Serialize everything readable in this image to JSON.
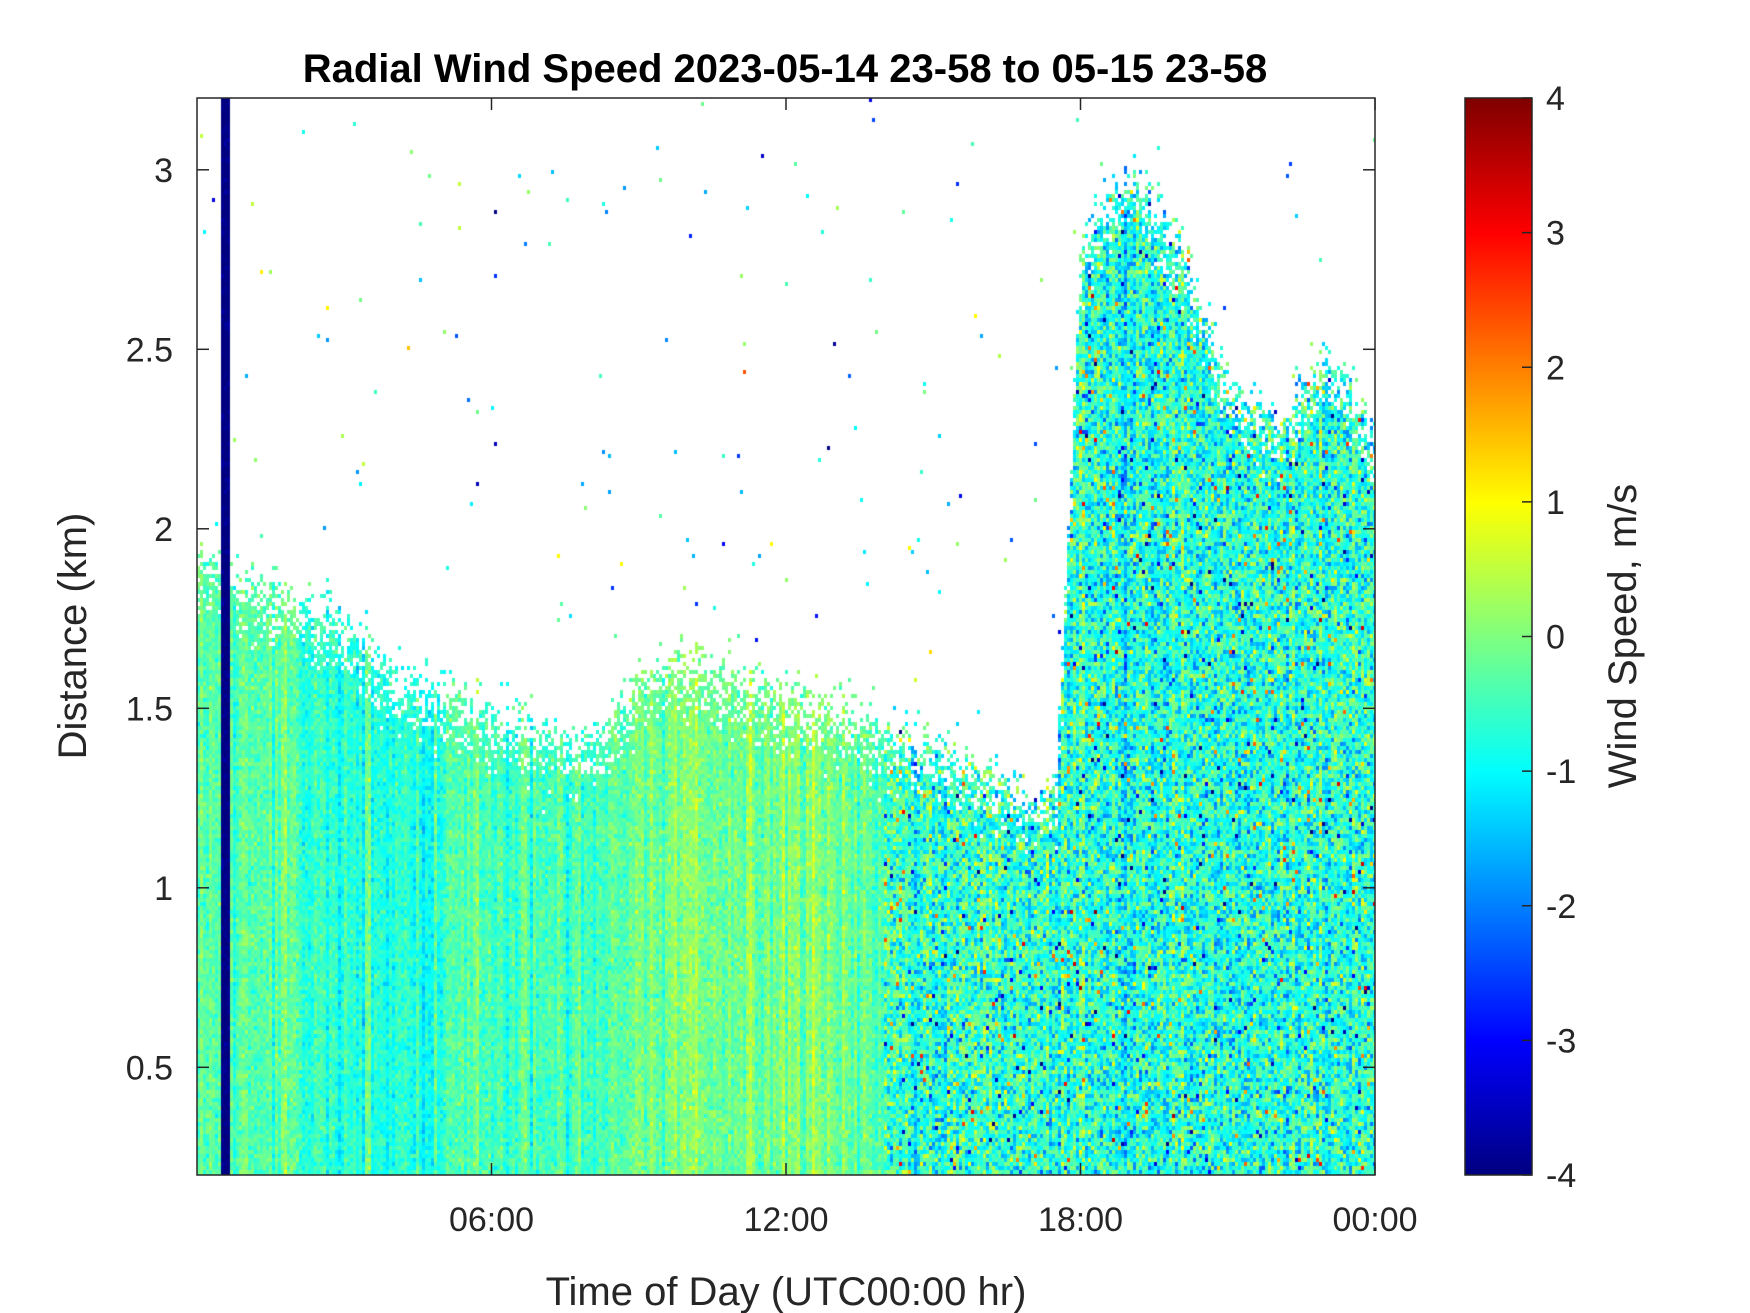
{
  "chart_data": {
    "type": "heatmap",
    "title": "Radial Wind Speed 2023-05-14 23-58 to 05-15 23-58",
    "xlabel": "Time of Day (UTC00:00 hr)",
    "ylabel": "Distance (km)",
    "xlim": [
      0,
      24
    ],
    "ylim": [
      0.2,
      3.2
    ],
    "x_ticks": [
      {
        "value": 6,
        "label": "06:00"
      },
      {
        "value": 12,
        "label": "12:00"
      },
      {
        "value": 18,
        "label": "18:00"
      },
      {
        "value": 24,
        "label": "00:00"
      }
    ],
    "y_ticks": [
      {
        "value": 0.5,
        "label": "0.5"
      },
      {
        "value": 1.0,
        "label": "1"
      },
      {
        "value": 1.5,
        "label": "1.5"
      },
      {
        "value": 2.0,
        "label": "2"
      },
      {
        "value": 2.5,
        "label": "2.5"
      },
      {
        "value": 3.0,
        "label": "3"
      }
    ],
    "colorbar": {
      "label": "Wind Speed, m/s",
      "colormap": "jet",
      "range": [
        -4,
        4
      ],
      "ticks": [
        {
          "value": 4,
          "label": "4"
        },
        {
          "value": 3,
          "label": "3"
        },
        {
          "value": 2,
          "label": "2"
        },
        {
          "value": 1,
          "label": "1"
        },
        {
          "value": 0,
          "label": "0"
        },
        {
          "value": -1,
          "label": "-1"
        },
        {
          "value": -2,
          "label": "-2"
        },
        {
          "value": -3,
          "label": "-3"
        },
        {
          "value": -4,
          "label": "-4"
        }
      ]
    },
    "signal_top_km": [
      [
        0.0,
        1.95
      ],
      [
        0.5,
        1.9
      ],
      [
        1.0,
        1.85
      ],
      [
        2.0,
        1.82
      ],
      [
        3.0,
        1.75
      ],
      [
        4.0,
        1.6
      ],
      [
        5.0,
        1.55
      ],
      [
        6.0,
        1.5
      ],
      [
        7.0,
        1.45
      ],
      [
        8.0,
        1.4
      ],
      [
        9.0,
        1.6
      ],
      [
        10.0,
        1.65
      ],
      [
        11.0,
        1.6
      ],
      [
        12.0,
        1.55
      ],
      [
        13.0,
        1.5
      ],
      [
        14.0,
        1.45
      ],
      [
        15.0,
        1.4
      ],
      [
        16.0,
        1.35
      ],
      [
        17.0,
        1.25
      ],
      [
        17.5,
        1.3
      ],
      [
        18.0,
        2.8
      ],
      [
        19.0,
        3.0
      ],
      [
        20.0,
        2.8
      ],
      [
        21.0,
        2.4
      ],
      [
        22.0,
        2.3
      ],
      [
        23.0,
        2.5
      ],
      [
        24.0,
        2.25
      ]
    ],
    "regimes": [
      {
        "x": [
          0.5,
          0.7
        ],
        "mean_speed": -4.0,
        "top_km": 3.2
      },
      {
        "x": [
          0.0,
          2.0
        ],
        "mean_speed": -0.3
      },
      {
        "x": [
          2.0,
          5.0
        ],
        "mean_speed": -0.7
      },
      {
        "x": [
          5.0,
          8.5
        ],
        "mean_speed": -0.4
      },
      {
        "x": [
          8.5,
          14.0
        ],
        "mean_speed": -0.1
      },
      {
        "x": [
          14.0,
          18.0
        ],
        "mean_speed": -0.6,
        "variance": "high"
      },
      {
        "x": [
          18.0,
          24.0
        ],
        "mean_speed": -0.7,
        "variance": "high"
      }
    ]
  }
}
